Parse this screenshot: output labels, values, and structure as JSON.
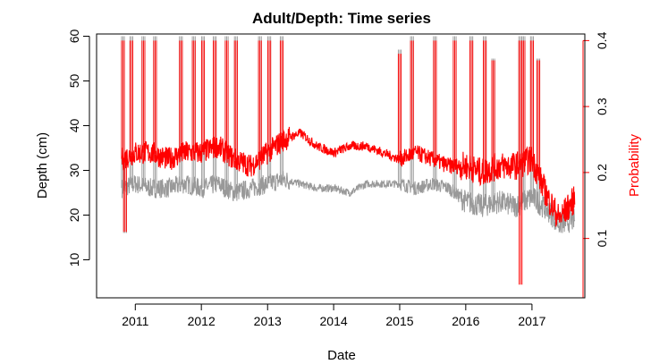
{
  "chart_data": {
    "type": "line",
    "title": "Adult/Depth: Time series",
    "xlabel": "Date",
    "ylabel": "Depth (cm)",
    "ylabel_right": "Probability",
    "x_ticks": [
      "2011",
      "2012",
      "2013",
      "2014",
      "2015",
      "2016",
      "2017"
    ],
    "y_ticks": [
      "10",
      "20",
      "30",
      "40",
      "50",
      "60"
    ],
    "y_right_ticks": [
      "0.1",
      "0.2",
      "0.3",
      "0.4"
    ],
    "xlim": [
      "2010-06-01",
      "2017-10-20"
    ],
    "ylim": [
      1.5,
      60.5
    ],
    "ylim_right": [
      0.01,
      0.41
    ],
    "grid": false,
    "colors": {
      "depth": "#999999",
      "probability": "#ff0000"
    },
    "series": [
      {
        "axis": "left",
        "color": "#999999",
        "x": [
          "2010-10-20",
          "2011-01-01",
          "2011-04-01",
          "2011-07-01",
          "2011-10-01",
          "2012-01-01",
          "2012-04-01",
          "2012-07-01",
          "2012-10-01",
          "2013-01-01",
          "2013-04-01",
          "2013-07-01",
          "2013-10-01",
          "2014-01-01",
          "2014-04-01",
          "2014-07-01",
          "2014-10-01",
          "2015-01-01",
          "2015-04-01",
          "2015-07-01",
          "2015-10-01",
          "2016-01-01",
          "2016-04-01",
          "2016-07-01",
          "2016-10-01",
          "2017-01-01",
          "2017-04-01",
          "2017-06-01",
          "2017-08-25"
        ],
        "values": [
          26,
          27,
          26,
          26,
          27,
          26,
          27,
          25,
          26,
          27,
          28,
          27,
          26,
          26,
          25,
          27,
          27,
          27,
          26,
          27,
          26,
          23,
          22,
          23,
          22,
          24,
          21,
          18,
          19
        ],
        "spikes": [
          {
            "date": "2010-10-25",
            "value": 60
          },
          {
            "date": "2010-11-05",
            "value": 16
          },
          {
            "date": "2010-12-10",
            "value": 60
          },
          {
            "date": "2011-02-15",
            "value": 60
          },
          {
            "date": "2011-04-20",
            "value": 60
          },
          {
            "date": "2011-09-10",
            "value": 60
          },
          {
            "date": "2011-11-20",
            "value": 60
          },
          {
            "date": "2012-01-10",
            "value": 60
          },
          {
            "date": "2012-03-15",
            "value": 60
          },
          {
            "date": "2012-05-20",
            "value": 60
          },
          {
            "date": "2012-07-10",
            "value": 60
          },
          {
            "date": "2012-11-20",
            "value": 60
          },
          {
            "date": "2013-01-10",
            "value": 60
          },
          {
            "date": "2013-03-20",
            "value": 60
          },
          {
            "date": "2015-01-01",
            "value": 57
          },
          {
            "date": "2015-03-10",
            "value": 60
          },
          {
            "date": "2015-07-15",
            "value": 60
          },
          {
            "date": "2015-11-01",
            "value": 60
          },
          {
            "date": "2016-02-01",
            "value": 60
          },
          {
            "date": "2016-04-15",
            "value": 60
          },
          {
            "date": "2016-06-01",
            "value": 55
          },
          {
            "date": "2016-10-28",
            "value": 60
          },
          {
            "date": "2016-11-15",
            "value": 60
          },
          {
            "date": "2017-01-01",
            "value": 60
          },
          {
            "date": "2017-02-05",
            "value": 55
          }
        ]
      },
      {
        "axis": "right",
        "color": "#ff0000",
        "x": [
          "2010-10-20",
          "2011-01-01",
          "2011-04-01",
          "2011-07-01",
          "2011-10-01",
          "2012-01-01",
          "2012-04-01",
          "2012-07-01",
          "2012-10-01",
          "2013-01-01",
          "2013-04-01",
          "2013-07-01",
          "2013-10-01",
          "2014-01-01",
          "2014-04-01",
          "2014-07-01",
          "2014-10-01",
          "2015-01-01",
          "2015-04-01",
          "2015-07-01",
          "2015-10-01",
          "2016-01-01",
          "2016-04-01",
          "2016-07-01",
          "2016-10-01",
          "2017-01-01",
          "2017-04-01",
          "2017-06-01",
          "2017-08-25"
        ],
        "values": [
          0.22,
          0.23,
          0.23,
          0.22,
          0.23,
          0.23,
          0.24,
          0.22,
          0.21,
          0.23,
          0.25,
          0.26,
          0.24,
          0.23,
          0.24,
          0.24,
          0.23,
          0.22,
          0.23,
          0.22,
          0.21,
          0.21,
          0.2,
          0.21,
          0.21,
          0.22,
          0.16,
          0.13,
          0.16
        ],
        "spikes": [
          {
            "date": "2010-10-25",
            "value": 0.4
          },
          {
            "date": "2010-11-05",
            "value": 0.11
          },
          {
            "date": "2010-12-10",
            "value": 0.4
          },
          {
            "date": "2011-02-15",
            "value": 0.4
          },
          {
            "date": "2011-04-20",
            "value": 0.4
          },
          {
            "date": "2011-09-10",
            "value": 0.4
          },
          {
            "date": "2011-11-20",
            "value": 0.4
          },
          {
            "date": "2012-01-10",
            "value": 0.4
          },
          {
            "date": "2012-03-15",
            "value": 0.4
          },
          {
            "date": "2012-05-20",
            "value": 0.4
          },
          {
            "date": "2012-07-10",
            "value": 0.4
          },
          {
            "date": "2012-11-20",
            "value": 0.4
          },
          {
            "date": "2013-01-10",
            "value": 0.4
          },
          {
            "date": "2013-03-20",
            "value": 0.4
          },
          {
            "date": "2015-01-01",
            "value": 0.38
          },
          {
            "date": "2015-03-10",
            "value": 0.4
          },
          {
            "date": "2015-07-15",
            "value": 0.4
          },
          {
            "date": "2015-11-01",
            "value": 0.4
          },
          {
            "date": "2016-02-01",
            "value": 0.4
          },
          {
            "date": "2016-04-15",
            "value": 0.4
          },
          {
            "date": "2016-06-01",
            "value": 0.37
          },
          {
            "date": "2016-10-28",
            "value": 0.4
          },
          {
            "date": "2016-10-30",
            "value": 0.03
          },
          {
            "date": "2016-11-15",
            "value": 0.4
          },
          {
            "date": "2017-01-01",
            "value": 0.4
          },
          {
            "date": "2017-02-05",
            "value": 0.37
          }
        ]
      }
    ]
  }
}
